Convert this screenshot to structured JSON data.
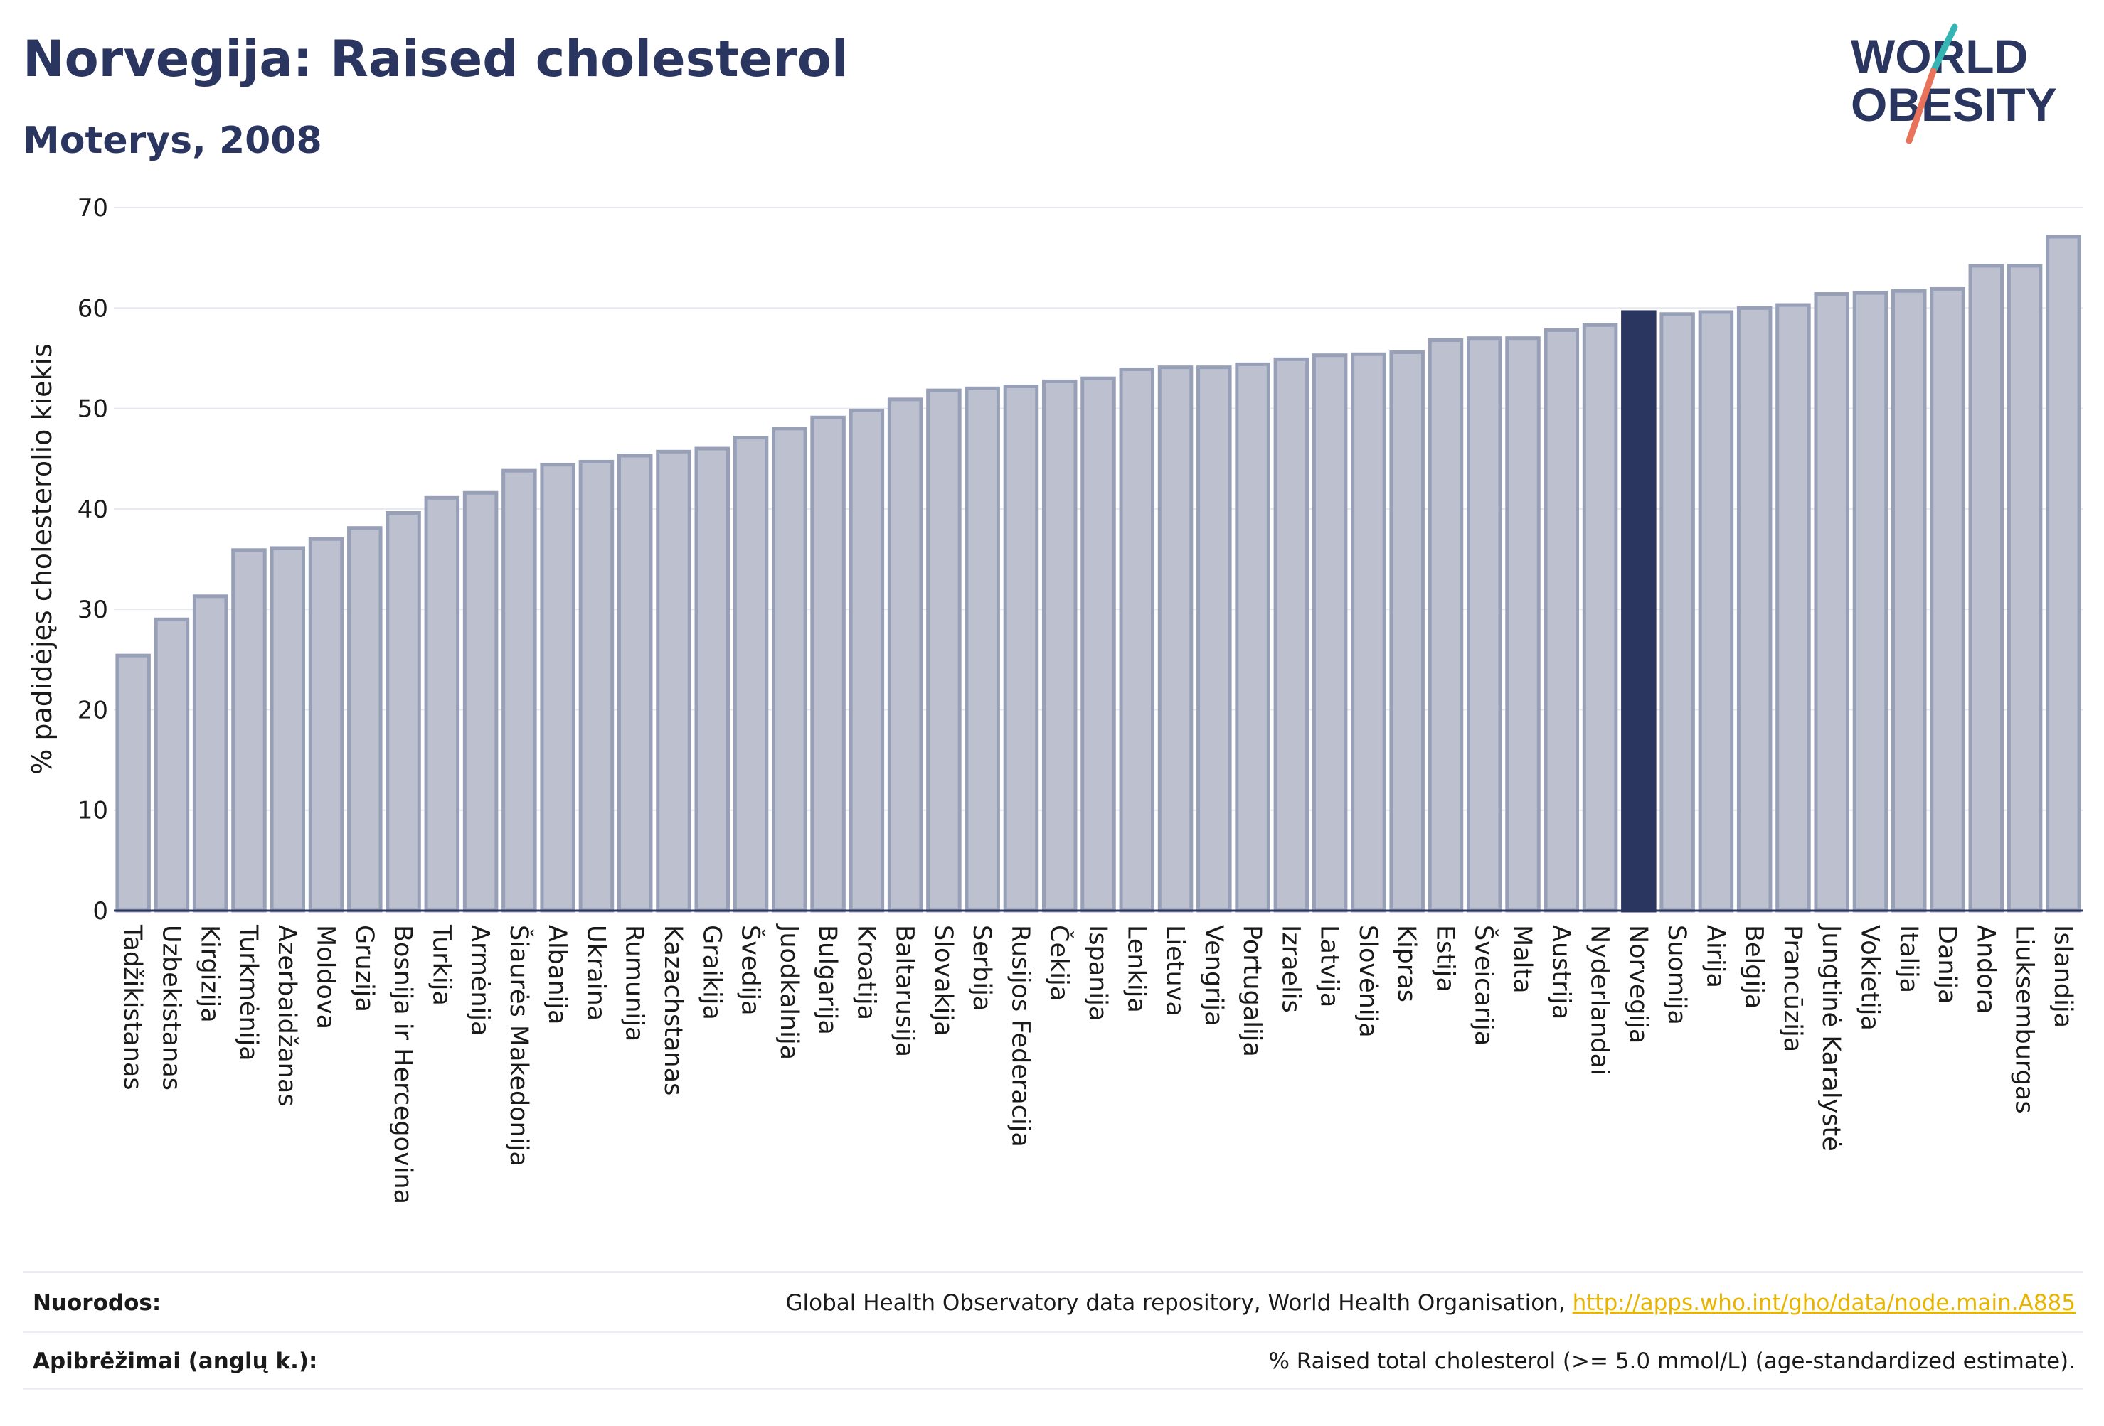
{
  "header": {
    "title": "Norvegija: Raised cholesterol",
    "subtitle": "Moterys, 2008"
  },
  "logo": {
    "line1": "WORLD",
    "line2": "OBESITY",
    "colors": {
      "text": "#2a3560",
      "teal": "#35b6b4",
      "coral": "#e8735a"
    }
  },
  "colors": {
    "bar_fill": "#bcc0cf",
    "bar_stroke": "#98a0b8",
    "highlight": "#2a3560",
    "grid": "#e6e8ee"
  },
  "chart_data": {
    "type": "bar",
    "ylabel": "% padidėjęs cholesterolio kiekis",
    "ylim": [
      0,
      70
    ],
    "yticks": [
      0,
      10,
      20,
      30,
      40,
      50,
      60,
      70
    ],
    "highlight": "Norvegija",
    "grid": true,
    "categories": [
      "Tadžikistanas",
      "Uzbekistanas",
      "Kirgizija",
      "Turkmėnija",
      "Azerbaidžanas",
      "Moldova",
      "Gruzija",
      "Bosnija ir Hercegovina",
      "Turkija",
      "Armėnija",
      "Šiaurės Makedonija",
      "Albanija",
      "Ukraina",
      "Rumunija",
      "Kazachstanas",
      "Graikija",
      "Švedija",
      "Juodkalnija",
      "Bulgarija",
      "Kroatija",
      "Baltarusija",
      "Slovakija",
      "Serbija",
      "Rusijos Federacija",
      "Čekija",
      "Ispanija",
      "Lenkija",
      "Lietuva",
      "Vengrija",
      "Portugalija",
      "Izraelis",
      "Latvija",
      "Slovėnija",
      "Kipras",
      "Estija",
      "Šveicarija",
      "Malta",
      "Austrija",
      "Nyderlandai",
      "Norvegija",
      "Suomija",
      "Airija",
      "Belgija",
      "Prancūzija",
      "Jungtinė Karalystė",
      "Vokietija",
      "Italija",
      "Danija",
      "Andora",
      "Liuksemburgas",
      "Islandija"
    ],
    "values": [
      25.4,
      29.0,
      31.3,
      35.9,
      36.1,
      37.0,
      38.1,
      39.6,
      41.1,
      41.6,
      43.8,
      44.4,
      44.7,
      45.3,
      45.7,
      46.0,
      47.1,
      48.0,
      49.1,
      49.8,
      50.9,
      51.8,
      52.0,
      52.2,
      52.7,
      53.0,
      53.9,
      54.1,
      54.1,
      54.4,
      54.9,
      55.3,
      55.4,
      55.6,
      56.8,
      57.0,
      57.0,
      57.8,
      58.3,
      59.6,
      59.4,
      59.6,
      60.0,
      60.3,
      61.4,
      61.5,
      61.7,
      61.9,
      64.2,
      64.2,
      67.1
    ]
  },
  "footer": {
    "sources_label": "Nuorodos:",
    "sources_text": "Global Health Observatory data repository, World Health Organisation, ",
    "sources_link": "http://apps.who.int/gho/data/node.main.A885",
    "definitions_label": "Apibrėžimai (anglų k.):",
    "definitions_text": "% Raised total cholesterol (>= 5.0 mmol/L) (age-standardized estimate)."
  }
}
